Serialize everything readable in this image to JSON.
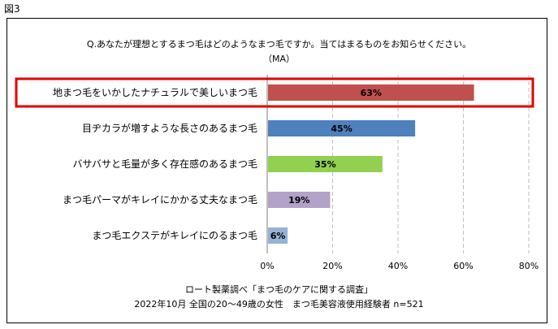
{
  "figure_label": "図3",
  "question": "Q.あなたが理想とするまつ毛はどのようなまつ毛ですか。当てはまるものをお知らせください。",
  "question_sub": "（MA）",
  "source_line1": "ロート製薬調べ「まつ毛のケアに関する調査」",
  "source_line2": "2022年10月 全国の20～49歳の女性　まつ毛美容液使用経験者 n=521",
  "colors": {
    "highlight_box": "#e00000",
    "gridline": "#bfbfbf"
  },
  "chart_data": {
    "type": "bar",
    "orientation": "horizontal",
    "categories": [
      "地まつ毛をいかしたナチュラルで美しいまつ毛",
      "目ヂカラが増すような長さのあるまつ毛",
      "バサバサと毛量が多く存在感のあるまつ毛",
      "まつ毛パーマがキレイにかかる丈夫なまつ毛",
      "まつ毛エクステがキレイにのるまつ毛"
    ],
    "values": [
      63,
      45,
      35,
      19,
      6
    ],
    "value_labels": [
      "63%",
      "45%",
      "35%",
      "19%",
      "6%"
    ],
    "bar_colors": [
      "#c0504d",
      "#4f81bd",
      "#92d050",
      "#b3a2c7",
      "#95b3d7"
    ],
    "xlim": [
      0,
      80
    ],
    "xticks": [
      0,
      20,
      40,
      60,
      80
    ],
    "xtick_labels": [
      "0%",
      "20%",
      "40%",
      "60%",
      "80%"
    ],
    "grid": true,
    "highlighted_category": "地まつ毛をいかしたナチュラルで美しいまつ毛"
  }
}
